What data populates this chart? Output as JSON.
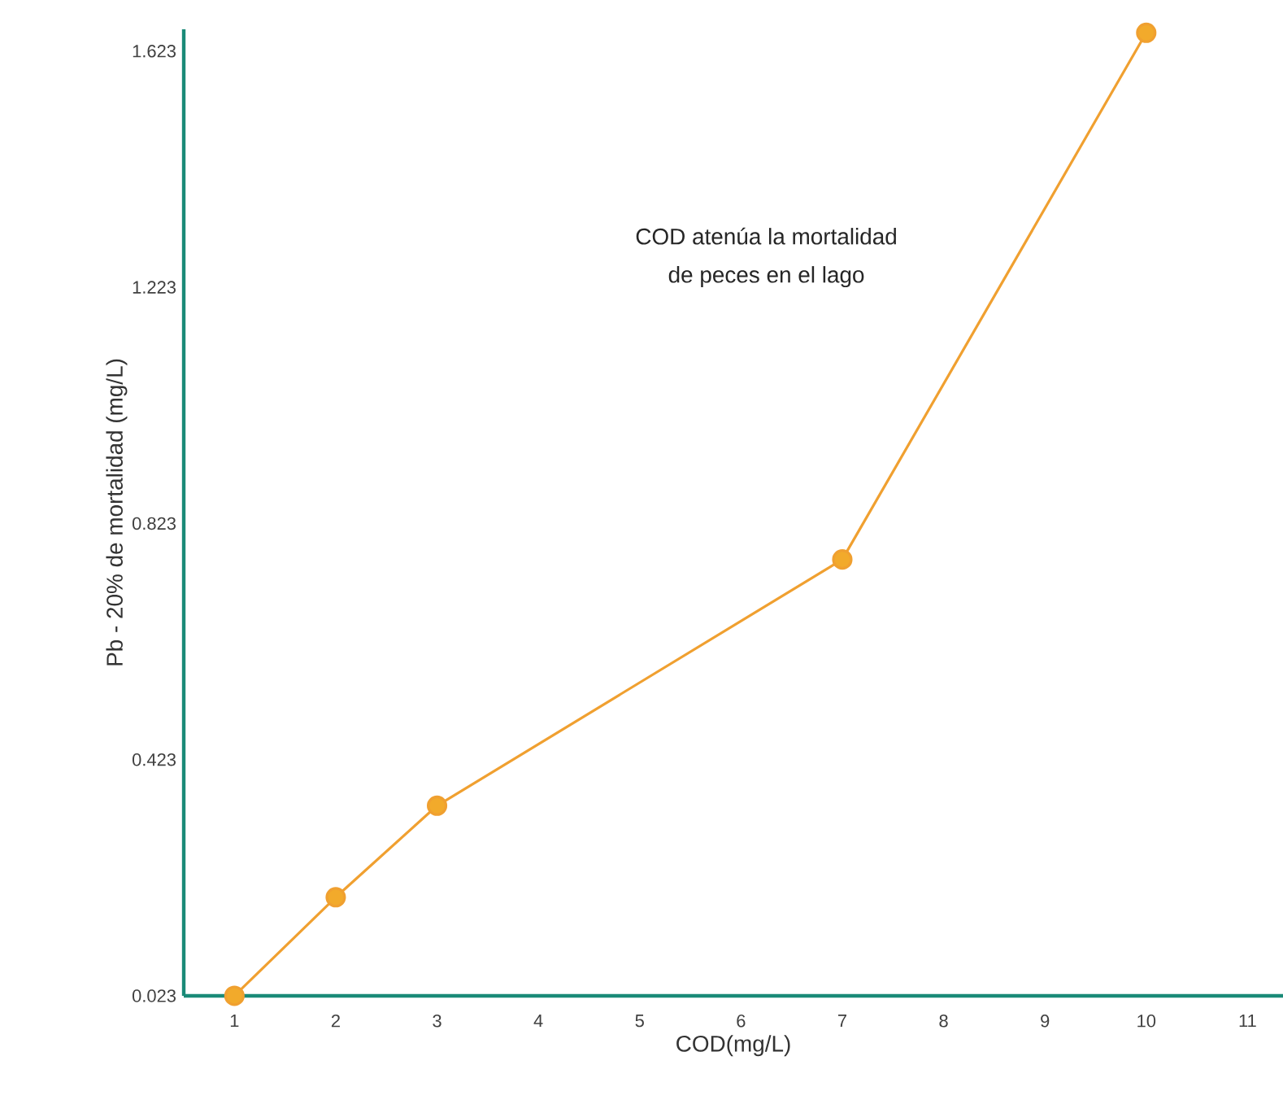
{
  "chart_data": {
    "type": "line",
    "xlabel": "COD(mg/L)",
    "ylabel": "Pb - 20% de mortalidad (mg/L)",
    "annotations": [
      "COD atenúa la mortalidad",
      "de peces en el lago"
    ],
    "x": [
      1,
      2,
      3,
      7,
      10
    ],
    "series": [
      {
        "color": "#f0a030",
        "values": [
          0.023,
          0.19,
          0.345,
          0.762,
          1.654
        ]
      }
    ],
    "xlim": [
      0.5,
      11.35
    ],
    "ylim": [
      0.023,
      1.66
    ],
    "xticks": [
      1,
      2,
      3,
      4,
      5,
      6,
      7,
      8,
      9,
      10,
      11
    ],
    "yticks": [
      0.023,
      0.423,
      0.823,
      1.223,
      1.623
    ],
    "marker": "circle",
    "line_style": "solid",
    "grid": false
  }
}
